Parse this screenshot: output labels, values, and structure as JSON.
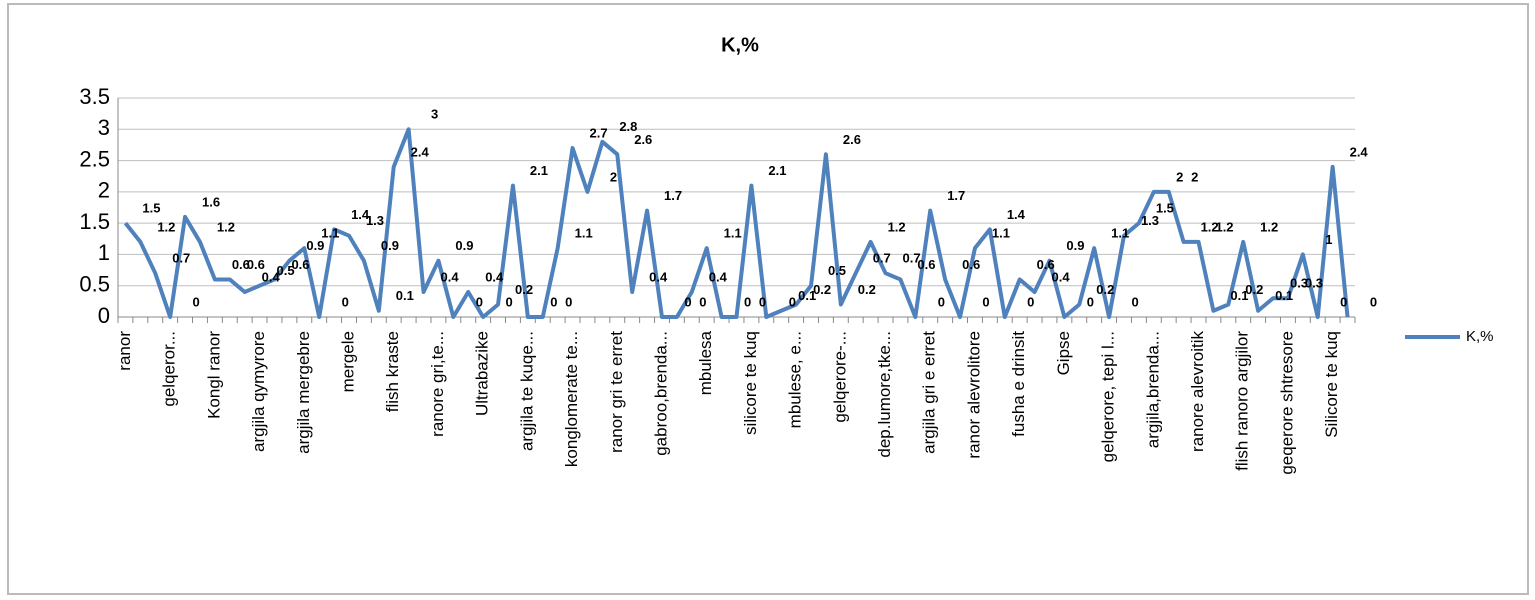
{
  "chart_data": {
    "type": "line",
    "title": "K,%",
    "categories": [
      "ranor",
      null,
      null,
      "gelqeror...",
      null,
      null,
      "Kongl ranor",
      null,
      null,
      "argjila qymyrore",
      null,
      null,
      "argjila mergebre",
      null,
      null,
      "mergele",
      null,
      null,
      "flish kraste",
      null,
      null,
      "ranore gri,te...",
      null,
      null,
      "Ultrabazike",
      null,
      null,
      "argjila te kuqe...",
      null,
      null,
      "konglomerate te...",
      null,
      null,
      "ranor gri te erret",
      null,
      null,
      "gabroo,brenda...",
      null,
      null,
      "mbulesa",
      null,
      null,
      "silicore te kuq",
      null,
      null,
      "mbulese, e...",
      null,
      null,
      "gelqerore-...",
      null,
      null,
      "dep.lumore,tke...",
      null,
      null,
      "argjila gri e erret",
      null,
      null,
      "ranor alevrolitore",
      null,
      null,
      "fusha e drinsit",
      null,
      null,
      "Gipse",
      null,
      null,
      "gelqerore, tepi l...",
      null,
      null,
      "argjila,brenda...",
      null,
      null,
      "ranore alevroitik",
      null,
      null,
      "flish ranoro argjilor",
      null,
      null,
      "geqerore shtresore",
      null,
      null,
      "Silicore te kuq",
      null
    ],
    "series": [
      {
        "name": "K,%",
        "color": "#4f81bd",
        "values": [
          1.5,
          1.2,
          0.7,
          0,
          1.6,
          1.2,
          0.6,
          0.6,
          0.4,
          0.5,
          0.6,
          0.9,
          1.1,
          0,
          1.4,
          1.3,
          0.9,
          0.1,
          2.4,
          3,
          0.4,
          0.9,
          0,
          0.4,
          0,
          0.2,
          2.1,
          0,
          0,
          1.1,
          2.7,
          2,
          2.8,
          2.6,
          0.4,
          1.7,
          0,
          0,
          0.4,
          1.1,
          0,
          0,
          2.1,
          0,
          0.1,
          0.2,
          0.5,
          2.6,
          0.2,
          0.7,
          1.2,
          0.7,
          0.6,
          0,
          1.7,
          0.6,
          0,
          1.1,
          1.4,
          0,
          0.6,
          0.4,
          0.9,
          0,
          0.2,
          1.1,
          0,
          1.3,
          1.5,
          2,
          2,
          1.2,
          1.2,
          0.1,
          0.2,
          1.2,
          0.1,
          0.3,
          0.3,
          1,
          0,
          2.4,
          0
        ]
      }
    ],
    "ylim": [
      0,
      3.5
    ],
    "yticks": [
      0,
      0.5,
      1,
      1.5,
      2,
      2.5,
      3,
      3.5
    ],
    "grid": true,
    "legend": "right"
  }
}
